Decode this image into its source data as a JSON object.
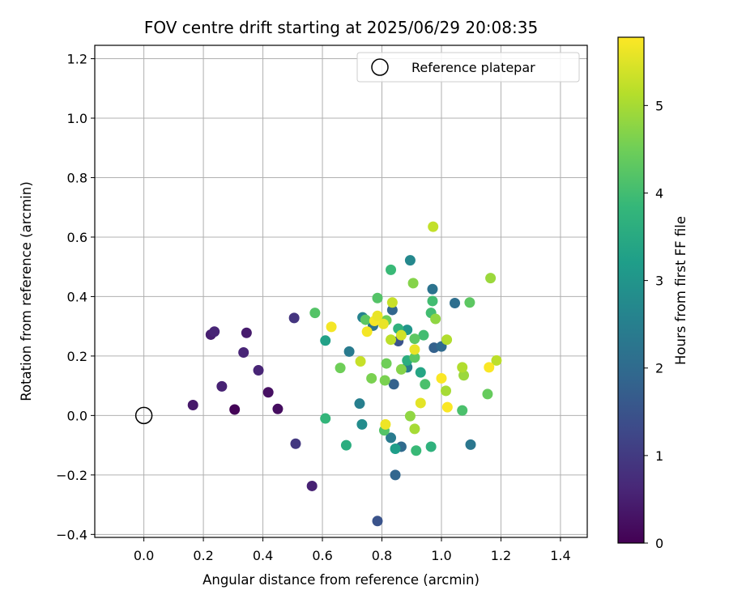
{
  "chart_data": {
    "type": "scatter",
    "title": "FOV centre drift starting at 2025/06/29 20:08:35",
    "xlabel": "Angular distance from reference (arcmin)",
    "ylabel": "Rotation from reference (arcmin)",
    "xlim": [
      -0.165,
      1.49
    ],
    "ylim": [
      -0.41,
      1.245
    ],
    "x_ticks": [
      "0.0",
      "0.2",
      "0.4",
      "0.6",
      "0.8",
      "1.0",
      "1.2",
      "1.4"
    ],
    "y_ticks": [
      "−0.4",
      "−0.2",
      "0.0",
      "0.2",
      "0.4",
      "0.6",
      "0.8",
      "1.0",
      "1.2"
    ],
    "x_tick_values": [
      0,
      0.2,
      0.4,
      0.6,
      0.8,
      1.0,
      1.2,
      1.4
    ],
    "y_tick_values": [
      -0.4,
      -0.2,
      0,
      0.2,
      0.4,
      0.6,
      0.8,
      1.0,
      1.2
    ],
    "grid": true,
    "legend": {
      "position": "top-right",
      "entries": [
        "Reference platepar"
      ]
    },
    "reference_point": {
      "x": 0.0,
      "y": 0.0,
      "label": "Reference platepar"
    },
    "colorbar": {
      "label": "Hours from first FF file",
      "colormap": "viridis",
      "range": [
        0,
        5.78
      ],
      "ticks": [
        "0",
        "1",
        "2",
        "3",
        "4",
        "5"
      ],
      "tick_values": [
        0,
        1,
        2,
        3,
        4,
        5
      ]
    },
    "colors": {
      "grid": "#b0b0b0",
      "axes": "#000000",
      "viridis": [
        "#440154",
        "#482878",
        "#3e4989",
        "#31688e",
        "#26828e",
        "#1f9e89",
        "#35b779",
        "#6ece58",
        "#b5de2b",
        "#fde725"
      ]
    },
    "points": [
      {
        "x": 0.305,
        "y": 0.02,
        "t": 0.05
      },
      {
        "x": 0.45,
        "y": 0.022,
        "t": 0.2
      },
      {
        "x": 0.418,
        "y": 0.078,
        "t": 0.25
      },
      {
        "x": 0.165,
        "y": 0.035,
        "t": 0.4
      },
      {
        "x": 0.262,
        "y": 0.098,
        "t": 0.55
      },
      {
        "x": 0.345,
        "y": 0.278,
        "t": 0.45
      },
      {
        "x": 0.225,
        "y": 0.272,
        "t": 0.5
      },
      {
        "x": 0.237,
        "y": 0.282,
        "t": 0.6
      },
      {
        "x": 0.335,
        "y": 0.212,
        "t": 0.6
      },
      {
        "x": 0.385,
        "y": 0.152,
        "t": 0.6
      },
      {
        "x": 0.565,
        "y": -0.237,
        "t": 0.55
      },
      {
        "x": 0.505,
        "y": 0.328,
        "t": 0.9
      },
      {
        "x": 0.51,
        "y": -0.095,
        "t": 0.95
      },
      {
        "x": 0.785,
        "y": -0.355,
        "t": 1.5
      },
      {
        "x": 0.845,
        "y": -0.2,
        "t": 1.9
      },
      {
        "x": 0.975,
        "y": 0.228,
        "t": 1.8
      },
      {
        "x": 0.84,
        "y": 0.105,
        "t": 1.8
      },
      {
        "x": 0.855,
        "y": 0.25,
        "t": 1.5
      },
      {
        "x": 0.835,
        "y": 0.355,
        "t": 1.9
      },
      {
        "x": 0.895,
        "y": 0.522,
        "t": 2.7
      },
      {
        "x": 0.97,
        "y": 0.425,
        "t": 2.2
      },
      {
        "x": 1.045,
        "y": 0.378,
        "t": 2.1
      },
      {
        "x": 1.0,
        "y": 0.232,
        "t": 2.0
      },
      {
        "x": 1.098,
        "y": -0.098,
        "t": 2.3
      },
      {
        "x": 0.865,
        "y": -0.105,
        "t": 2.0
      },
      {
        "x": 0.83,
        "y": -0.075,
        "t": 2.4
      },
      {
        "x": 0.725,
        "y": 0.04,
        "t": 2.5
      },
      {
        "x": 0.69,
        "y": 0.215,
        "t": 2.4
      },
      {
        "x": 0.735,
        "y": 0.33,
        "t": 2.6
      },
      {
        "x": 0.77,
        "y": 0.302,
        "t": 2.2
      },
      {
        "x": 0.885,
        "y": 0.162,
        "t": 2.4
      },
      {
        "x": 0.733,
        "y": -0.03,
        "t": 2.8
      },
      {
        "x": 0.845,
        "y": -0.112,
        "t": 3.2
      },
      {
        "x": 0.61,
        "y": 0.252,
        "t": 3.3
      },
      {
        "x": 0.885,
        "y": 0.288,
        "t": 3.0
      },
      {
        "x": 0.93,
        "y": 0.145,
        "t": 3.4
      },
      {
        "x": 0.68,
        "y": -0.1,
        "t": 3.6
      },
      {
        "x": 0.965,
        "y": -0.105,
        "t": 3.7
      },
      {
        "x": 0.61,
        "y": -0.01,
        "t": 3.8
      },
      {
        "x": 0.915,
        "y": -0.118,
        "t": 3.9
      },
      {
        "x": 0.83,
        "y": 0.49,
        "t": 3.9
      },
      {
        "x": 0.885,
        "y": 0.185,
        "t": 3.6
      },
      {
        "x": 0.855,
        "y": 0.292,
        "t": 3.7
      },
      {
        "x": 0.94,
        "y": 0.27,
        "t": 4.0
      },
      {
        "x": 0.965,
        "y": 0.345,
        "t": 4.0
      },
      {
        "x": 0.945,
        "y": 0.105,
        "t": 4.1
      },
      {
        "x": 1.07,
        "y": 0.017,
        "t": 4.1
      },
      {
        "x": 0.575,
        "y": 0.345,
        "t": 4.2
      },
      {
        "x": 0.785,
        "y": 0.395,
        "t": 4.2
      },
      {
        "x": 0.808,
        "y": -0.05,
        "t": 4.2
      },
      {
        "x": 0.97,
        "y": 0.385,
        "t": 4.0
      },
      {
        "x": 0.91,
        "y": 0.195,
        "t": 4.3
      },
      {
        "x": 0.91,
        "y": 0.258,
        "t": 4.3
      },
      {
        "x": 1.095,
        "y": 0.38,
        "t": 4.3
      },
      {
        "x": 1.155,
        "y": 0.072,
        "t": 4.4
      },
      {
        "x": 0.745,
        "y": 0.322,
        "t": 4.3
      },
      {
        "x": 0.815,
        "y": 0.32,
        "t": 4.5
      },
      {
        "x": 0.815,
        "y": 0.175,
        "t": 4.5
      },
      {
        "x": 0.81,
        "y": 0.118,
        "t": 4.6
      },
      {
        "x": 0.765,
        "y": 0.125,
        "t": 4.6
      },
      {
        "x": 0.66,
        "y": 0.16,
        "t": 4.5
      },
      {
        "x": 0.865,
        "y": 0.155,
        "t": 4.7
      },
      {
        "x": 0.905,
        "y": 0.445,
        "t": 4.7
      },
      {
        "x": 0.98,
        "y": 0.325,
        "t": 4.8
      },
      {
        "x": 0.895,
        "y": -0.002,
        "t": 4.8
      },
      {
        "x": 0.91,
        "y": -0.045,
        "t": 5.0
      },
      {
        "x": 1.165,
        "y": 0.462,
        "t": 4.9
      },
      {
        "x": 1.015,
        "y": 0.083,
        "t": 5.0
      },
      {
        "x": 1.075,
        "y": 0.135,
        "t": 4.9
      },
      {
        "x": 1.07,
        "y": 0.162,
        "t": 5.1
      },
      {
        "x": 1.018,
        "y": 0.255,
        "t": 5.1
      },
      {
        "x": 0.972,
        "y": 0.635,
        "t": 5.25
      },
      {
        "x": 1.185,
        "y": 0.185,
        "t": 5.2
      },
      {
        "x": 0.728,
        "y": 0.182,
        "t": 5.3
      },
      {
        "x": 0.835,
        "y": 0.38,
        "t": 5.3
      },
      {
        "x": 0.865,
        "y": 0.27,
        "t": 5.4
      },
      {
        "x": 0.83,
        "y": 0.255,
        "t": 5.2
      },
      {
        "x": 0.805,
        "y": 0.308,
        "t": 5.6
      },
      {
        "x": 0.91,
        "y": 0.222,
        "t": 5.6
      },
      {
        "x": 0.63,
        "y": 0.298,
        "t": 5.7
      },
      {
        "x": 0.75,
        "y": 0.282,
        "t": 5.7
      },
      {
        "x": 0.775,
        "y": 0.318,
        "t": 5.7
      },
      {
        "x": 0.785,
        "y": 0.335,
        "t": 5.6
      },
      {
        "x": 0.812,
        "y": -0.03,
        "t": 5.65
      },
      {
        "x": 0.93,
        "y": 0.042,
        "t": 5.55
      },
      {
        "x": 1.0,
        "y": 0.125,
        "t": 5.75
      },
      {
        "x": 1.02,
        "y": 0.028,
        "t": 5.75
      },
      {
        "x": 1.16,
        "y": 0.162,
        "t": 5.75
      }
    ]
  }
}
